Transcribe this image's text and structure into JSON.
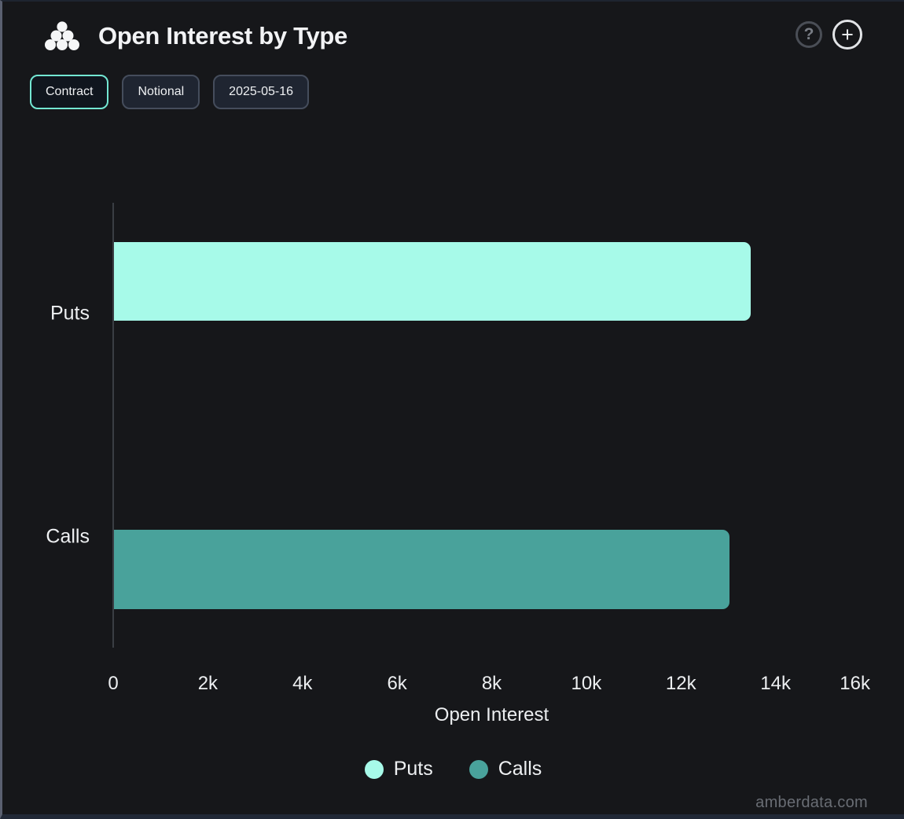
{
  "header": {
    "title": "Open Interest by Type",
    "help_label": "?",
    "add_label": "+"
  },
  "controls": {
    "contract_label": "Contract",
    "notional_label": "Notional",
    "date_label": "2025-05-16",
    "active": "Contract"
  },
  "chart_data": {
    "type": "bar",
    "orientation": "horizontal",
    "title": "Open Interest by Type",
    "xlabel": "Open Interest",
    "ylabel": "",
    "categories": [
      "Puts",
      "Calls"
    ],
    "series": [
      {
        "name": "Puts",
        "value": 13460,
        "color": "#a7fae9"
      },
      {
        "name": "Calls",
        "value": 13010,
        "color": "#49a29b"
      }
    ],
    "xlim": [
      0,
      16000
    ],
    "x_ticks": [
      {
        "value": 0,
        "label": "0"
      },
      {
        "value": 2000,
        "label": "2k"
      },
      {
        "value": 4000,
        "label": "4k"
      },
      {
        "value": 6000,
        "label": "6k"
      },
      {
        "value": 8000,
        "label": "8k"
      },
      {
        "value": 10000,
        "label": "10k"
      },
      {
        "value": 12000,
        "label": "12k"
      },
      {
        "value": 14000,
        "label": "14k"
      },
      {
        "value": 16000,
        "label": "16k"
      }
    ],
    "grid": false,
    "legend_position": "bottom",
    "legend": [
      {
        "label": "Puts",
        "color": "#a7fae9"
      },
      {
        "label": "Calls",
        "color": "#49a29b"
      }
    ]
  },
  "colors": {
    "background": "#16171a",
    "accent": "#73e7d3",
    "puts": "#a7fae9",
    "calls": "#49a29b",
    "axis_line": "#3a3e44",
    "text": "#eef0f2"
  },
  "watermark": "amberdata.com"
}
